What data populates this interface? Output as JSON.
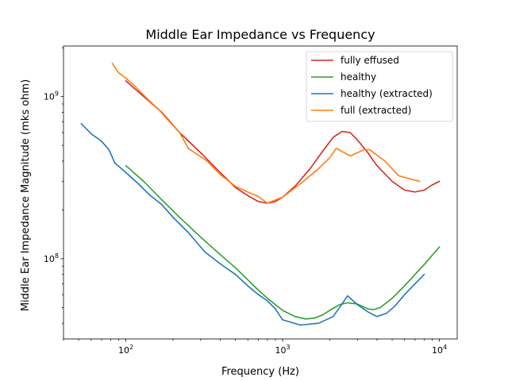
{
  "chart_data": {
    "type": "line",
    "title": "Middle Ear Impedance vs Frequency",
    "xlabel": "Frequency (Hz)",
    "ylabel": "Middle Ear Impedance Magnitude (mks ohm)",
    "xscale": "log",
    "yscale": "log",
    "xlim": [
      40,
      13000
    ],
    "ylim": [
      32000000,
      2050000000
    ],
    "grid": false,
    "legend_position": "top-right",
    "x_ticks": [
      {
        "value": 100,
        "base": "10",
        "exp": "2"
      },
      {
        "value": 1000,
        "base": "10",
        "exp": "3"
      },
      {
        "value": 10000,
        "base": "10",
        "exp": "4"
      }
    ],
    "y_ticks": [
      {
        "value": 100000000,
        "base": "10",
        "exp": "8"
      },
      {
        "value": 1000000000,
        "base": "10",
        "exp": "9"
      }
    ],
    "series": [
      {
        "name": "fully effused",
        "color": "#d62728",
        "points": [
          [
            100,
            1250000000
          ],
          [
            130,
            1000000000
          ],
          [
            170,
            800000000
          ],
          [
            220,
            600000000
          ],
          [
            300,
            450000000
          ],
          [
            400,
            340000000
          ],
          [
            500,
            275000000
          ],
          [
            600,
            245000000
          ],
          [
            700,
            225000000
          ],
          [
            800,
            220000000
          ],
          [
            900,
            225000000
          ],
          [
            1000,
            240000000
          ],
          [
            1200,
            280000000
          ],
          [
            1500,
            360000000
          ],
          [
            1800,
            460000000
          ],
          [
            2100,
            560000000
          ],
          [
            2400,
            610000000
          ],
          [
            2700,
            600000000
          ],
          [
            3000,
            540000000
          ],
          [
            3500,
            450000000
          ],
          [
            4000,
            375000000
          ],
          [
            5000,
            300000000
          ],
          [
            6000,
            265000000
          ],
          [
            7000,
            258000000
          ],
          [
            8000,
            265000000
          ],
          [
            9000,
            285000000
          ],
          [
            10000,
            300000000
          ]
        ]
      },
      {
        "name": "healthy",
        "color": "#2ca02c",
        "points": [
          [
            100,
            375000000
          ],
          [
            130,
            300000000
          ],
          [
            170,
            230000000
          ],
          [
            220,
            180000000
          ],
          [
            300,
            136000000
          ],
          [
            400,
            106000000
          ],
          [
            500,
            88000000
          ],
          [
            600,
            74000000
          ],
          [
            700,
            64000000
          ],
          [
            800,
            57000000
          ],
          [
            1000,
            48000000
          ],
          [
            1200,
            44000000
          ],
          [
            1400,
            42500000
          ],
          [
            1600,
            43000000
          ],
          [
            1800,
            45000000
          ],
          [
            2000,
            48000000
          ],
          [
            2300,
            52000000
          ],
          [
            2600,
            53500000
          ],
          [
            3000,
            52500000
          ],
          [
            3500,
            49000000
          ],
          [
            3800,
            48500000
          ],
          [
            4200,
            50000000
          ],
          [
            5000,
            57000000
          ],
          [
            6000,
            68000000
          ],
          [
            7000,
            80000000
          ],
          [
            8000,
            92000000
          ],
          [
            9000,
            105000000
          ],
          [
            10000,
            118000000
          ]
        ]
      },
      {
        "name": "healthy (extracted)",
        "color": "#1f77b4",
        "points": [
          [
            52,
            680000000
          ],
          [
            60,
            590000000
          ],
          [
            70,
            530000000
          ],
          [
            78,
            470000000
          ],
          [
            85,
            390000000
          ],
          [
            100,
            340000000
          ],
          [
            120,
            290000000
          ],
          [
            140,
            250000000
          ],
          [
            170,
            215000000
          ],
          [
            200,
            180000000
          ],
          [
            250,
            145000000
          ],
          [
            320,
            110000000
          ],
          [
            400,
            93000000
          ],
          [
            500,
            80000000
          ],
          [
            600,
            68000000
          ],
          [
            700,
            60000000
          ],
          [
            800,
            55000000
          ],
          [
            900,
            49000000
          ],
          [
            1000,
            42000000
          ],
          [
            1300,
            39000000
          ],
          [
            1700,
            40000000
          ],
          [
            2100,
            44000000
          ],
          [
            2600,
            59000000
          ],
          [
            3000,
            52000000
          ],
          [
            3500,
            47000000
          ],
          [
            4000,
            44000000
          ],
          [
            4600,
            46000000
          ],
          [
            5200,
            51000000
          ],
          [
            6000,
            60000000
          ],
          [
            7000,
            70000000
          ],
          [
            8000,
            80000000
          ]
        ]
      },
      {
        "name": "full (extracted)",
        "color": "#ff7f0e",
        "points": [
          [
            82,
            1600000000
          ],
          [
            90,
            1400000000
          ],
          [
            100,
            1300000000
          ],
          [
            115,
            1150000000
          ],
          [
            140,
            950000000
          ],
          [
            165,
            820000000
          ],
          [
            185,
            720000000
          ],
          [
            220,
            600000000
          ],
          [
            250,
            480000000
          ],
          [
            330,
            400000000
          ],
          [
            400,
            330000000
          ],
          [
            500,
            280000000
          ],
          [
            600,
            258000000
          ],
          [
            700,
            242000000
          ],
          [
            800,
            220000000
          ],
          [
            1000,
            240000000
          ],
          [
            1300,
            290000000
          ],
          [
            1700,
            360000000
          ],
          [
            2000,
            420000000
          ],
          [
            2200,
            480000000
          ],
          [
            2700,
            430000000
          ],
          [
            3300,
            470000000
          ],
          [
            3600,
            470000000
          ],
          [
            4500,
            400000000
          ],
          [
            5500,
            325000000
          ],
          [
            7500,
            300000000
          ]
        ]
      }
    ]
  }
}
